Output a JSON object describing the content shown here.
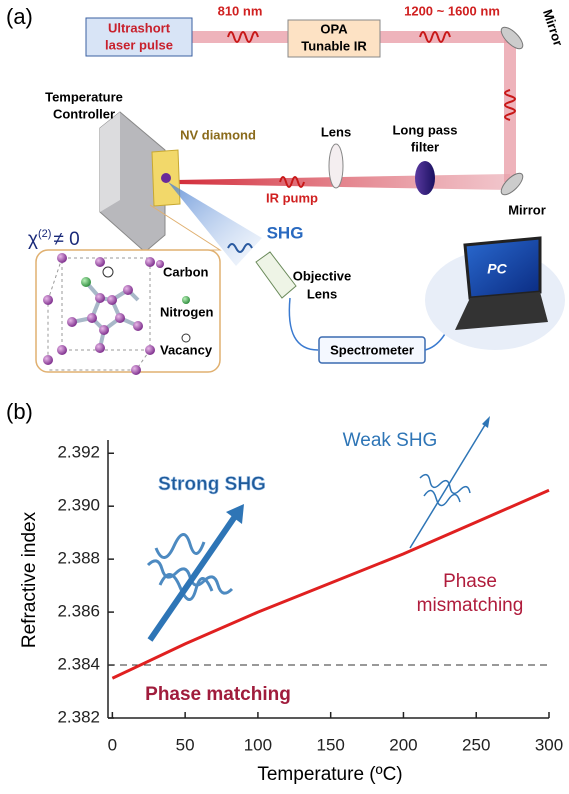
{
  "diagram": {
    "panel_label": "(a)",
    "laser_box": [
      "Ultrashort",
      "laser pulse"
    ],
    "wavelength_1": "810 nm",
    "opa_box": [
      "OPA",
      "Tunable IR"
    ],
    "wavelength_2": "1200 ~ 1600 nm",
    "mirror_top": "Mirror",
    "mirror_bottom": "Mirror",
    "temperature_controller": [
      "Temperature",
      "Controller"
    ],
    "nv_diamond": "NV diamond",
    "lens": "Lens",
    "filter": [
      "Long pass",
      "filter"
    ],
    "ir_pump": "IR pump",
    "shg": "SHG",
    "chi_label": {
      "symbol": "χ",
      "superscript": "(2)",
      "relation": "≠ 0"
    },
    "legend": [
      "Carbon",
      "Nitrogen",
      "Vacancy"
    ],
    "objective_lens": [
      "Objective",
      "Lens"
    ],
    "spectrometer": "Spectrometer",
    "pc": "PC"
  },
  "chart_data": {
    "type": "line",
    "panel_label": "(b)",
    "x_label": "Temperature (ºC)",
    "y_label": "Refractive index",
    "x": [
      0,
      50,
      100,
      150,
      200,
      250,
      300
    ],
    "series": [
      {
        "name": "Refractive index",
        "color": "#e02020",
        "values": [
          2.3835,
          2.3848,
          2.386,
          2.3871,
          2.3882,
          2.3894,
          2.3906
        ]
      }
    ],
    "xlim": [
      -3,
      300
    ],
    "ylim": [
      2.382,
      2.3925
    ],
    "xticks": [
      0,
      50,
      100,
      150,
      200,
      250,
      300
    ],
    "yticks": [
      2.382,
      2.384,
      2.386,
      2.388,
      {
        "value": 2.39,
        "label": "2.390"
      },
      2.392
    ],
    "reference_line": {
      "y": 2.384,
      "style": "dashed",
      "color": "#333333"
    },
    "annotations": [
      "Strong SHG",
      "Weak SHG",
      [
        "Phase",
        "mismatching"
      ],
      "Phase matching"
    ]
  }
}
